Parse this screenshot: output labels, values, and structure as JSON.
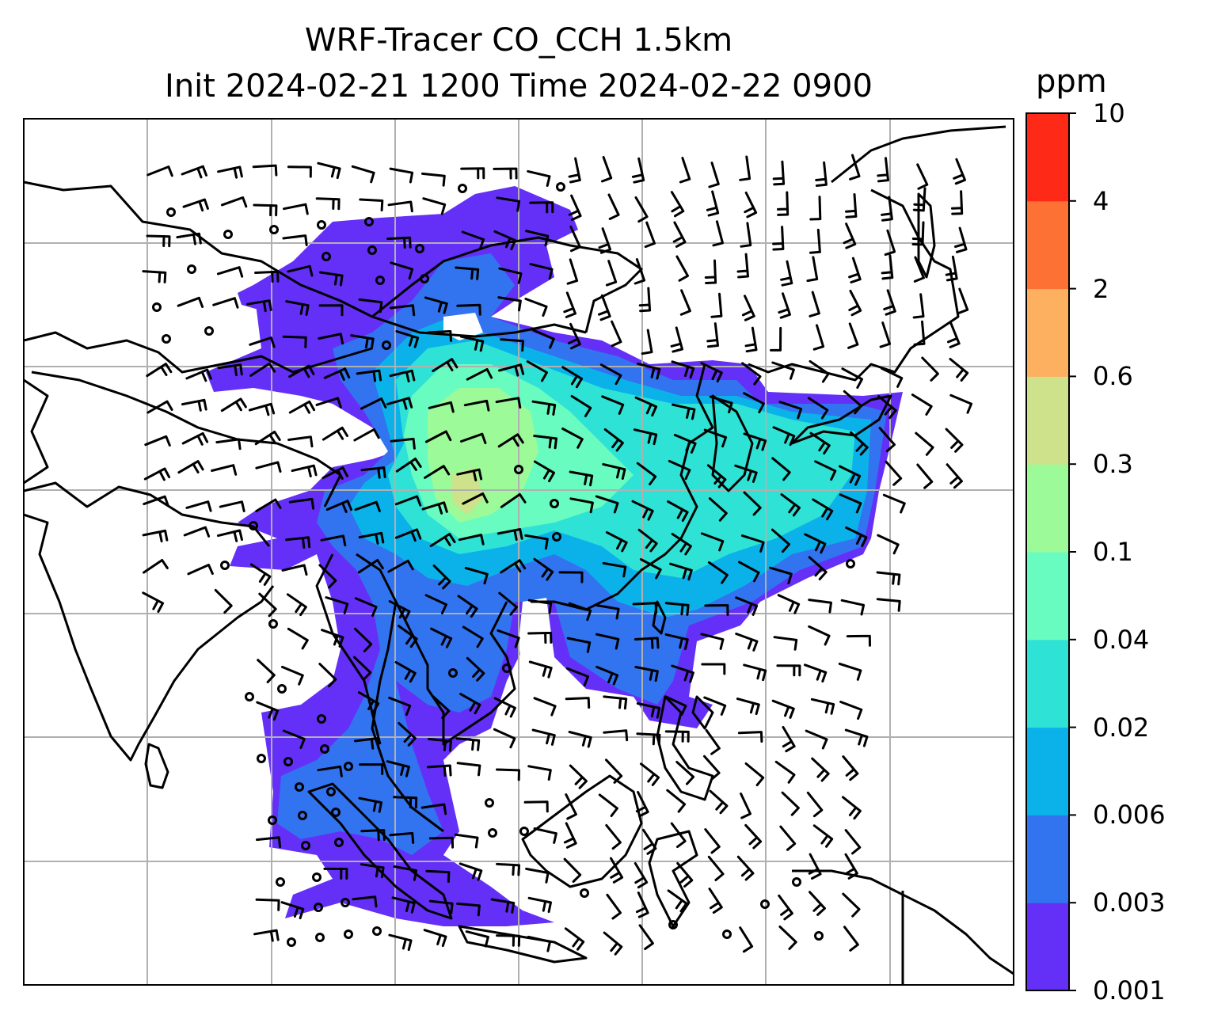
{
  "title": {
    "line1": "WRF-Tracer CO_CCH 1.5km",
    "line2": "Init 2024-02-21 1200 Time 2024-02-22 0900"
  },
  "colorbar": {
    "unit": "ppm",
    "levels": [
      "0.001",
      "0.003",
      "0.006",
      "0.02",
      "0.04",
      "0.1",
      "0.3",
      "0.6",
      "2",
      "4",
      "10"
    ],
    "colors": [
      "#6430f8",
      "#3273f0",
      "#0bb2ea",
      "#2ee3d6",
      "#69fcc0",
      "#9cfa98",
      "#cde28a",
      "#fcb060",
      "#fd7234",
      "#fe2a17"
    ]
  },
  "map": {
    "gridlines": true,
    "barb_color": "#000000",
    "coast_color": "#000000",
    "grid_color": "#b0b0b0"
  }
}
